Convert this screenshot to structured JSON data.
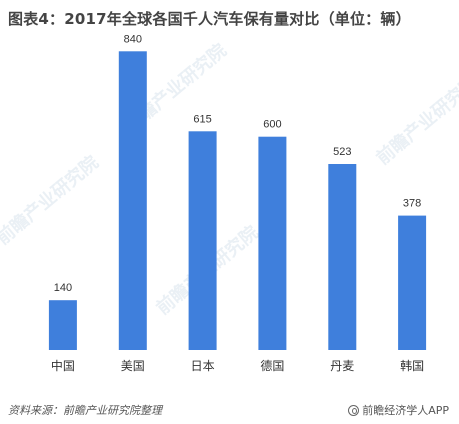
{
  "title": "图表4：2017年全球各国千人汽车保有量对比（单位：辆）",
  "footer": {
    "source": "资料来源：前瞻产业研究院整理",
    "brand": "前瞻经济学人APP"
  },
  "colors": {
    "bar": "#3f7fdc"
  },
  "chart_data": {
    "type": "bar",
    "title": "图表4：2017年全球各国千人汽车保有量对比（单位：辆）",
    "xlabel": "",
    "ylabel": "",
    "categories": [
      "中国",
      "美国",
      "日本",
      "德国",
      "丹麦",
      "韩国"
    ],
    "values": [
      140,
      840,
      615,
      600,
      523,
      378
    ],
    "ylim": [
      0,
      900
    ],
    "grid": false,
    "legend": "none"
  }
}
